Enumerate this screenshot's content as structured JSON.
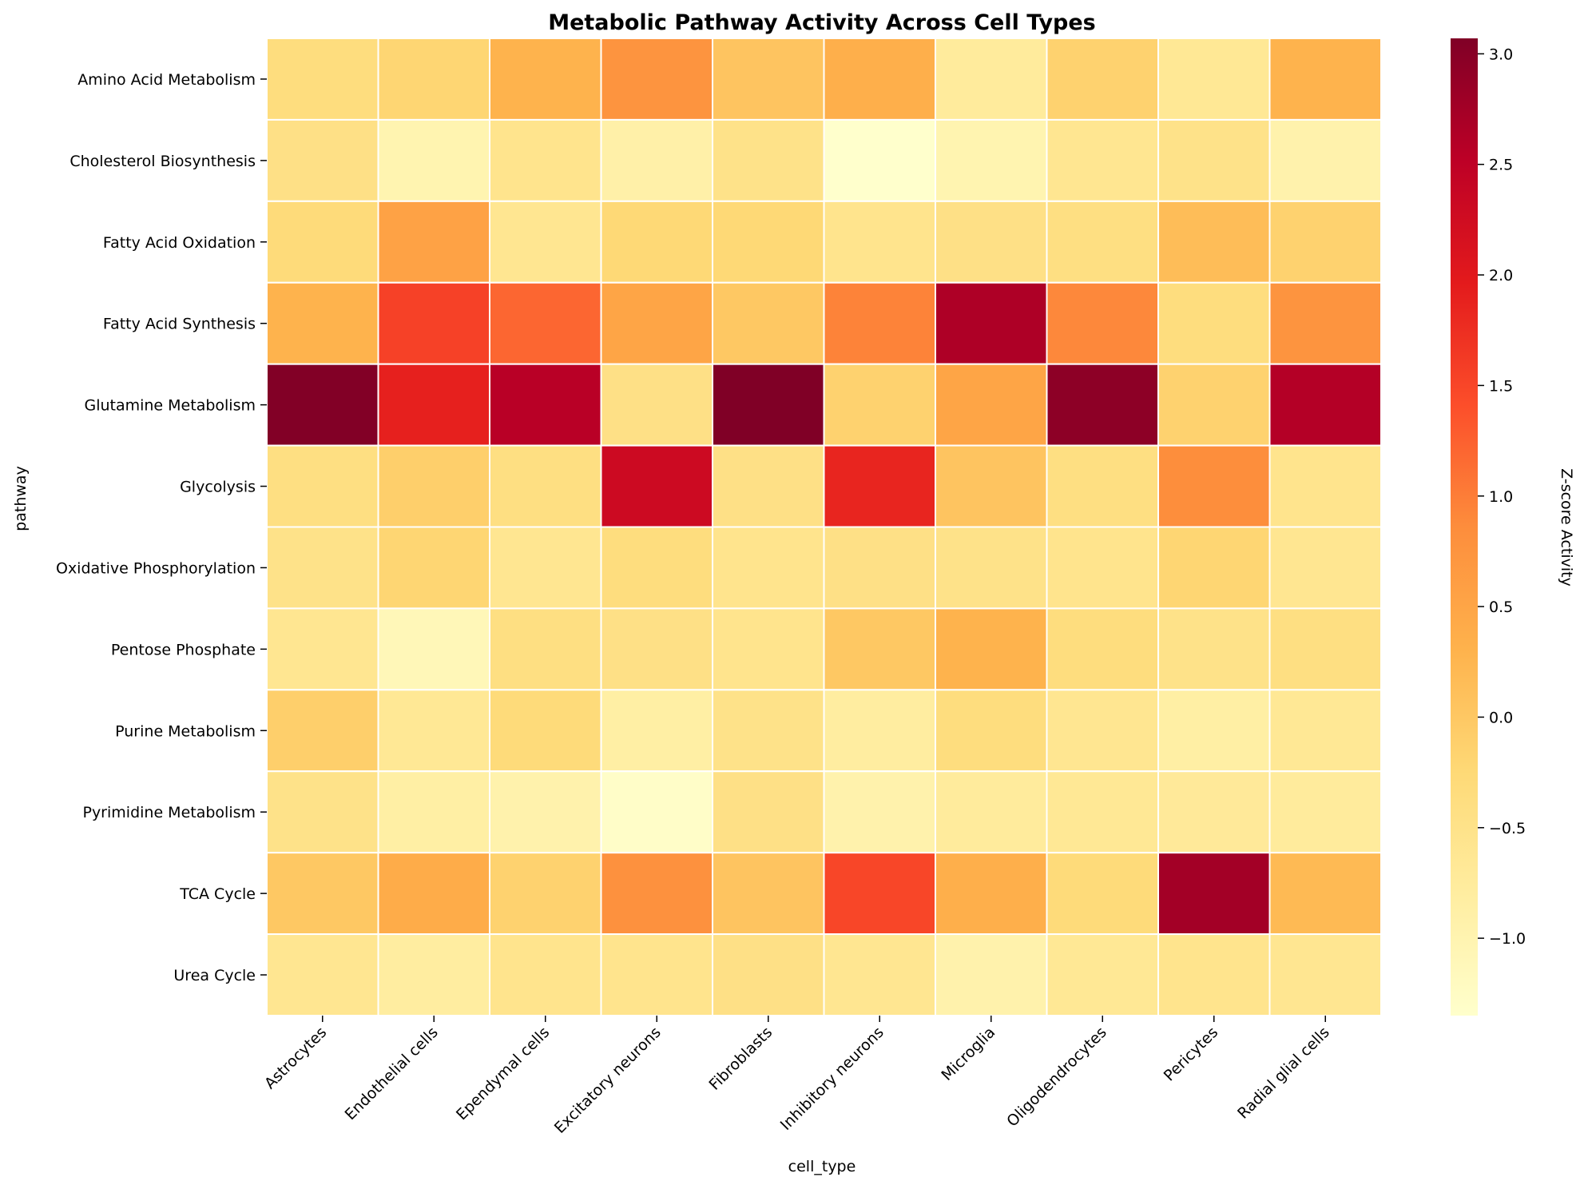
{
  "chart_data": {
    "type": "heatmap",
    "title": "Metabolic Pathway Activity Across Cell Types",
    "xlabel": "cell_type",
    "ylabel": "pathway",
    "colorbar_label": "Z-score Activity",
    "colormap": "YlOrRd",
    "color_range": [
      -1.35,
      3.07
    ],
    "colorbar_ticks": [
      "−1.0",
      "−0.5",
      "0.0",
      "0.5",
      "1.0",
      "1.5",
      "2.0",
      "2.5",
      "3.0"
    ],
    "colorbar_tick_values": [
      -1.0,
      -0.5,
      0.0,
      0.5,
      1.0,
      1.5,
      2.0,
      2.5,
      3.0
    ],
    "x_categories": [
      "Astrocytes",
      "Endothelial cells",
      "Ependymal cells",
      "Excitatory neurons",
      "Fibroblasts",
      "Inhibitory neurons",
      "Microglia",
      "Oligodendrocytes",
      "Pericytes",
      "Radial glial cells"
    ],
    "y_categories": [
      "Amino Acid Metabolism",
      "Cholesterol Biosynthesis",
      "Fatty Acid Oxidation",
      "Fatty Acid Synthesis",
      "Glutamine Metabolism",
      "Glycolysis",
      "Oxidative Phosphorylation",
      "Pentose Phosphate",
      "Purine Metabolism",
      "Pyrimidine Metabolism",
      "TCA Cycle",
      "Urea Cycle"
    ],
    "values": [
      [
        -0.35,
        -0.2,
        0.3,
        0.75,
        0.05,
        0.35,
        -0.75,
        -0.15,
        -0.65,
        0.3
      ],
      [
        -0.45,
        -1.0,
        -0.55,
        -0.9,
        -0.5,
        -1.35,
        -1.0,
        -0.6,
        -0.5,
        -0.95
      ],
      [
        -0.3,
        0.55,
        -0.6,
        -0.25,
        -0.25,
        -0.55,
        -0.45,
        -0.4,
        0.15,
        -0.15
      ],
      [
        0.3,
        1.55,
        1.2,
        0.5,
        0.0,
        0.95,
        2.65,
        0.9,
        -0.35,
        0.75
      ],
      [
        3.05,
        1.9,
        2.55,
        -0.45,
        3.07,
        -0.15,
        0.5,
        2.95,
        -0.15,
        2.6
      ],
      [
        -0.4,
        -0.1,
        -0.4,
        2.3,
        -0.45,
        1.85,
        0.05,
        -0.4,
        0.85,
        -0.55
      ],
      [
        -0.5,
        -0.2,
        -0.6,
        -0.35,
        -0.55,
        -0.45,
        -0.5,
        -0.55,
        -0.2,
        -0.6
      ],
      [
        -0.6,
        -1.1,
        -0.4,
        -0.45,
        -0.55,
        0.0,
        0.3,
        -0.35,
        -0.5,
        -0.4
      ],
      [
        -0.1,
        -0.65,
        -0.3,
        -0.85,
        -0.5,
        -0.8,
        -0.35,
        -0.6,
        -0.85,
        -0.65
      ],
      [
        -0.5,
        -0.85,
        -0.95,
        -1.3,
        -0.45,
        -0.95,
        -0.75,
        -0.65,
        -0.7,
        -0.75
      ],
      [
        0.0,
        0.4,
        -0.15,
        0.8,
        0.05,
        1.5,
        0.35,
        -0.3,
        2.75,
        0.2
      ],
      [
        -0.6,
        -0.8,
        -0.55,
        -0.55,
        -0.45,
        -0.6,
        -0.95,
        -0.65,
        -0.55,
        -0.6
      ]
    ]
  }
}
